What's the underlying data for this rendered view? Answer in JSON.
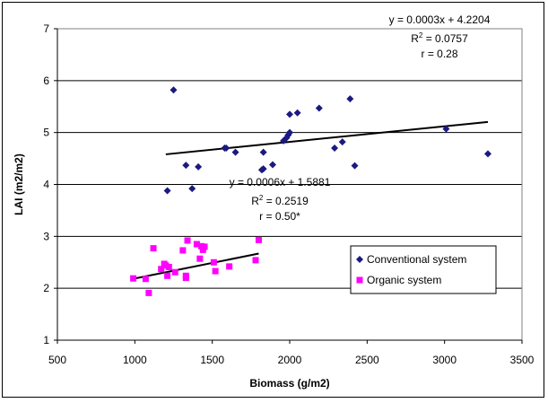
{
  "chart_data": {
    "type": "scatter",
    "title": "",
    "xlabel": "Biomass (g/m2)",
    "ylabel": "LAI (m2/m2)",
    "xlim": [
      500,
      3500
    ],
    "ylim": [
      1,
      7
    ],
    "x_ticks": [
      500,
      1000,
      1500,
      2000,
      2500,
      3000,
      3500
    ],
    "y_ticks": [
      1,
      2,
      3,
      4,
      5,
      6,
      7
    ],
    "grid": "horizontal major gridlines",
    "legend_position": "lower-right",
    "series": [
      {
        "name": "Conventional system",
        "marker": "diamond",
        "color": "#1a1a80",
        "points": [
          [
            1210,
            3.88
          ],
          [
            1250,
            5.82
          ],
          [
            1330,
            4.37
          ],
          [
            1370,
            3.92
          ],
          [
            1410,
            4.34
          ],
          [
            1580,
            4.7
          ],
          [
            1590,
            4.7
          ],
          [
            1650,
            4.62
          ],
          [
            1820,
            4.28
          ],
          [
            1830,
            4.3
          ],
          [
            1830,
            4.62
          ],
          [
            1890,
            4.38
          ],
          [
            1960,
            4.84
          ],
          [
            1980,
            4.9
          ],
          [
            1990,
            4.95
          ],
          [
            2000,
            5.35
          ],
          [
            2000,
            5.0
          ],
          [
            2050,
            5.38
          ],
          [
            2190,
            5.47
          ],
          [
            2290,
            4.7
          ],
          [
            2340,
            4.82
          ],
          [
            2390,
            5.65
          ],
          [
            2420,
            4.36
          ],
          [
            3010,
            5.07
          ],
          [
            3280,
            4.59
          ]
        ],
        "trendline": {
          "x": [
            1200,
            3280
          ],
          "y": [
            4.5804,
            5.2044
          ]
        },
        "annotation": {
          "equation": "y = 0.0003x + 4.2204",
          "r2_prefix": "R",
          "r2_exp": "2",
          "r2_value": " = 0.0757",
          "r": "r = 0.28"
        }
      },
      {
        "name": "Organic system",
        "marker": "square",
        "color": "#ff00ff",
        "points": [
          [
            990,
            2.19
          ],
          [
            1070,
            2.18
          ],
          [
            1090,
            1.91
          ],
          [
            1120,
            2.77
          ],
          [
            1170,
            2.37
          ],
          [
            1190,
            2.47
          ],
          [
            1200,
            2.44
          ],
          [
            1210,
            2.24
          ],
          [
            1220,
            2.41
          ],
          [
            1260,
            2.31
          ],
          [
            1310,
            2.73
          ],
          [
            1330,
            2.24
          ],
          [
            1330,
            2.2
          ],
          [
            1340,
            2.92
          ],
          [
            1400,
            2.85
          ],
          [
            1420,
            2.57
          ],
          [
            1430,
            2.81
          ],
          [
            1440,
            2.74
          ],
          [
            1450,
            2.8
          ],
          [
            1510,
            2.5
          ],
          [
            1520,
            2.33
          ],
          [
            1610,
            2.42
          ],
          [
            1780,
            2.54
          ],
          [
            1800,
            2.93
          ]
        ],
        "trendline": {
          "x": [
            1000,
            1800
          ],
          "y": [
            2.1881,
            2.6681
          ]
        },
        "annotation": {
          "equation": "y = 0.0006x + 1.5881",
          "r2_prefix": "R",
          "r2_exp": "2",
          "r2_value": " = 0.2519",
          "r": "r = 0.50*"
        }
      }
    ]
  }
}
